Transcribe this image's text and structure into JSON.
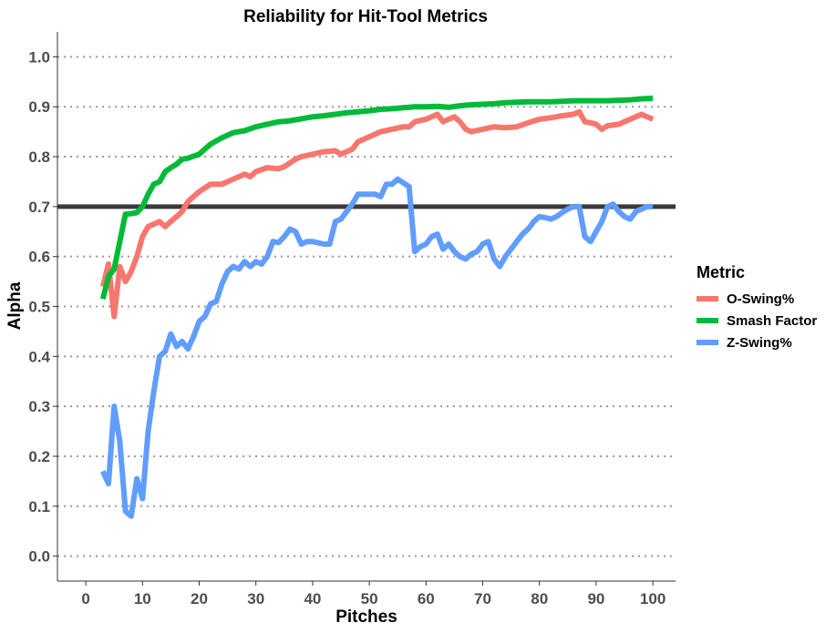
{
  "chart_data": {
    "type": "line",
    "title": "Reliability for Hit-Tool Metrics",
    "xlabel": "Pitches",
    "ylabel": "Alpha",
    "xlim": [
      -5,
      104
    ],
    "ylim": [
      -0.05,
      1.05
    ],
    "x_ticks": [
      0,
      10,
      20,
      30,
      40,
      50,
      60,
      70,
      80,
      90,
      100
    ],
    "y_ticks": [
      0.0,
      0.1,
      0.2,
      0.3,
      0.4,
      0.5,
      0.6,
      0.7,
      0.8,
      0.9,
      1.0
    ],
    "y_tick_labels": [
      "0.0",
      "0.1",
      "0.2",
      "0.3",
      "0.4",
      "0.5",
      "0.6",
      "0.7",
      "0.8",
      "0.9",
      "1.0"
    ],
    "grid": "horizontal dotted",
    "reference_line": {
      "y": 0.7,
      "color": "#3a3a3a"
    },
    "legend": {
      "title": "Metric",
      "position": "right"
    },
    "series": [
      {
        "name": "O-Swing%",
        "color": "#F8766D",
        "points": [
          [
            3,
            0.54
          ],
          [
            4,
            0.585
          ],
          [
            5,
            0.48
          ],
          [
            6,
            0.58
          ],
          [
            7,
            0.55
          ],
          [
            8,
            0.57
          ],
          [
            9,
            0.6
          ],
          [
            10,
            0.64
          ],
          [
            11,
            0.66
          ],
          [
            12,
            0.665
          ],
          [
            13,
            0.67
          ],
          [
            14,
            0.66
          ],
          [
            15,
            0.67
          ],
          [
            16,
            0.68
          ],
          [
            17,
            0.69
          ],
          [
            18,
            0.71
          ],
          [
            20,
            0.73
          ],
          [
            22,
            0.745
          ],
          [
            24,
            0.745
          ],
          [
            25,
            0.75
          ],
          [
            26,
            0.755
          ],
          [
            28,
            0.765
          ],
          [
            29,
            0.76
          ],
          [
            30,
            0.77
          ],
          [
            32,
            0.778
          ],
          [
            34,
            0.776
          ],
          [
            35,
            0.78
          ],
          [
            37,
            0.795
          ],
          [
            38,
            0.8
          ],
          [
            40,
            0.805
          ],
          [
            42,
            0.81
          ],
          [
            44,
            0.812
          ],
          [
            45,
            0.805
          ],
          [
            47,
            0.815
          ],
          [
            48,
            0.83
          ],
          [
            50,
            0.84
          ],
          [
            52,
            0.85
          ],
          [
            54,
            0.855
          ],
          [
            56,
            0.86
          ],
          [
            57,
            0.86
          ],
          [
            58,
            0.87
          ],
          [
            60,
            0.875
          ],
          [
            62,
            0.885
          ],
          [
            63,
            0.87
          ],
          [
            64,
            0.875
          ],
          [
            65,
            0.88
          ],
          [
            66,
            0.87
          ],
          [
            67,
            0.855
          ],
          [
            68,
            0.85
          ],
          [
            70,
            0.855
          ],
          [
            72,
            0.86
          ],
          [
            74,
            0.858
          ],
          [
            76,
            0.86
          ],
          [
            78,
            0.868
          ],
          [
            80,
            0.875
          ],
          [
            82,
            0.878
          ],
          [
            84,
            0.882
          ],
          [
            86,
            0.885
          ],
          [
            87,
            0.89
          ],
          [
            88,
            0.87
          ],
          [
            89,
            0.868
          ],
          [
            90,
            0.865
          ],
          [
            91,
            0.855
          ],
          [
            92,
            0.862
          ],
          [
            94,
            0.865
          ],
          [
            96,
            0.875
          ],
          [
            98,
            0.885
          ],
          [
            99,
            0.88
          ],
          [
            100,
            0.875
          ]
        ]
      },
      {
        "name": "Smash Factor",
        "color": "#00BA38",
        "points": [
          [
            3,
            0.515
          ],
          [
            4,
            0.56
          ],
          [
            5,
            0.575
          ],
          [
            6,
            0.63
          ],
          [
            7,
            0.685
          ],
          [
            8,
            0.686
          ],
          [
            9,
            0.688
          ],
          [
            10,
            0.7
          ],
          [
            11,
            0.725
          ],
          [
            12,
            0.745
          ],
          [
            13,
            0.75
          ],
          [
            14,
            0.77
          ],
          [
            15,
            0.778
          ],
          [
            16,
            0.785
          ],
          [
            17,
            0.795
          ],
          [
            18,
            0.797
          ],
          [
            20,
            0.805
          ],
          [
            22,
            0.825
          ],
          [
            24,
            0.838
          ],
          [
            26,
            0.848
          ],
          [
            28,
            0.852
          ],
          [
            30,
            0.86
          ],
          [
            32,
            0.865
          ],
          [
            34,
            0.87
          ],
          [
            36,
            0.872
          ],
          [
            38,
            0.876
          ],
          [
            40,
            0.88
          ],
          [
            42,
            0.882
          ],
          [
            44,
            0.885
          ],
          [
            46,
            0.888
          ],
          [
            48,
            0.89
          ],
          [
            50,
            0.892
          ],
          [
            52,
            0.895
          ],
          [
            54,
            0.896
          ],
          [
            56,
            0.898
          ],
          [
            58,
            0.9
          ],
          [
            60,
            0.9
          ],
          [
            62,
            0.901
          ],
          [
            64,
            0.899
          ],
          [
            66,
            0.902
          ],
          [
            68,
            0.904
          ],
          [
            70,
            0.905
          ],
          [
            72,
            0.906
          ],
          [
            74,
            0.908
          ],
          [
            76,
            0.909
          ],
          [
            78,
            0.91
          ],
          [
            80,
            0.91
          ],
          [
            82,
            0.91
          ],
          [
            84,
            0.911
          ],
          [
            86,
            0.912
          ],
          [
            88,
            0.912
          ],
          [
            90,
            0.912
          ],
          [
            92,
            0.912
          ],
          [
            94,
            0.913
          ],
          [
            96,
            0.914
          ],
          [
            98,
            0.916
          ],
          [
            100,
            0.917
          ]
        ]
      },
      {
        "name": "Z-Swing%",
        "color": "#619CFF",
        "points": [
          [
            3,
            0.17
          ],
          [
            4,
            0.145
          ],
          [
            5,
            0.3
          ],
          [
            6,
            0.23
          ],
          [
            7,
            0.09
          ],
          [
            8,
            0.08
          ],
          [
            9,
            0.155
          ],
          [
            10,
            0.115
          ],
          [
            11,
            0.25
          ],
          [
            12,
            0.33
          ],
          [
            13,
            0.4
          ],
          [
            14,
            0.41
          ],
          [
            15,
            0.445
          ],
          [
            16,
            0.42
          ],
          [
            17,
            0.43
          ],
          [
            18,
            0.415
          ],
          [
            19,
            0.44
          ],
          [
            20,
            0.47
          ],
          [
            21,
            0.48
          ],
          [
            22,
            0.505
          ],
          [
            23,
            0.51
          ],
          [
            24,
            0.545
          ],
          [
            25,
            0.57
          ],
          [
            26,
            0.58
          ],
          [
            27,
            0.575
          ],
          [
            28,
            0.59
          ],
          [
            29,
            0.58
          ],
          [
            30,
            0.59
          ],
          [
            31,
            0.585
          ],
          [
            32,
            0.6
          ],
          [
            33,
            0.63
          ],
          [
            34,
            0.628
          ],
          [
            35,
            0.64
          ],
          [
            36,
            0.655
          ],
          [
            37,
            0.65
          ],
          [
            38,
            0.625
          ],
          [
            39,
            0.63
          ],
          [
            40,
            0.63
          ],
          [
            42,
            0.625
          ],
          [
            43,
            0.625
          ],
          [
            44,
            0.67
          ],
          [
            45,
            0.675
          ],
          [
            46,
            0.69
          ],
          [
            47,
            0.705
          ],
          [
            48,
            0.725
          ],
          [
            50,
            0.725
          ],
          [
            51,
            0.725
          ],
          [
            52,
            0.72
          ],
          [
            53,
            0.745
          ],
          [
            54,
            0.745
          ],
          [
            55,
            0.755
          ],
          [
            57,
            0.74
          ],
          [
            58,
            0.61
          ],
          [
            59,
            0.62
          ],
          [
            60,
            0.625
          ],
          [
            61,
            0.64
          ],
          [
            62,
            0.645
          ],
          [
            63,
            0.615
          ],
          [
            64,
            0.625
          ],
          [
            65,
            0.61
          ],
          [
            66,
            0.6
          ],
          [
            67,
            0.595
          ],
          [
            68,
            0.605
          ],
          [
            69,
            0.61
          ],
          [
            70,
            0.625
          ],
          [
            71,
            0.63
          ],
          [
            72,
            0.595
          ],
          [
            73,
            0.58
          ],
          [
            74,
            0.6
          ],
          [
            75,
            0.615
          ],
          [
            76,
            0.63
          ],
          [
            77,
            0.645
          ],
          [
            78,
            0.655
          ],
          [
            79,
            0.67
          ],
          [
            80,
            0.68
          ],
          [
            81,
            0.678
          ],
          [
            82,
            0.675
          ],
          [
            83,
            0.68
          ],
          [
            84,
            0.688
          ],
          [
            85,
            0.695
          ],
          [
            86,
            0.7
          ],
          [
            87,
            0.7
          ],
          [
            88,
            0.64
          ],
          [
            89,
            0.63
          ],
          [
            90,
            0.65
          ],
          [
            91,
            0.67
          ],
          [
            92,
            0.7
          ],
          [
            93,
            0.705
          ],
          [
            94,
            0.69
          ],
          [
            95,
            0.68
          ],
          [
            96,
            0.675
          ],
          [
            97,
            0.69
          ],
          [
            98,
            0.695
          ],
          [
            99,
            0.7
          ],
          [
            100,
            0.7
          ]
        ]
      }
    ]
  }
}
